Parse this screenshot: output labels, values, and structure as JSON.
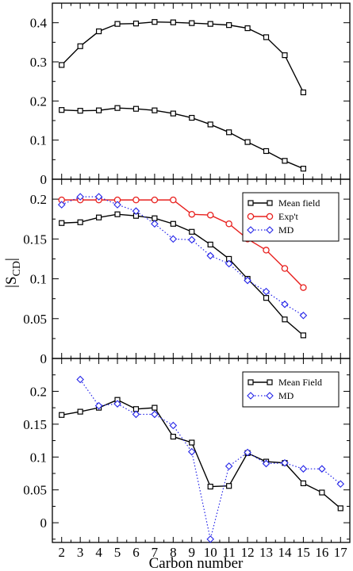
{
  "xlabel": "Carbon number",
  "ylabel_main": "|S",
  "ylabel_sub": "CD",
  "ylabel_close": "|",
  "x_ticks": [
    2,
    3,
    4,
    5,
    6,
    7,
    8,
    9,
    10,
    11,
    12,
    13,
    14,
    15,
    16,
    17
  ],
  "chart_data": [
    {
      "type": "line",
      "panel": "top",
      "xlim": [
        1.5,
        17.5
      ],
      "ylim": [
        0,
        0.45
      ],
      "yticks": [
        0,
        0.1,
        0.2,
        0.3,
        0.4
      ],
      "ytick_labels": [
        "0",
        "0.1",
        "0.2",
        "0.3",
        "0.4"
      ],
      "legend": null,
      "series": [
        {
          "color": "#000000",
          "marker": "square",
          "dash": "solid",
          "x": [
            2,
            3,
            4,
            5,
            6,
            7,
            8,
            9,
            10,
            11,
            12,
            13,
            14,
            15
          ],
          "values": [
            0.292,
            0.34,
            0.378,
            0.397,
            0.398,
            0.402,
            0.401,
            0.399,
            0.397,
            0.394,
            0.386,
            0.363,
            0.317,
            0.222
          ]
        },
        {
          "color": "#000000",
          "marker": "square",
          "dash": "solid",
          "x": [
            2,
            3,
            4,
            5,
            6,
            7,
            8,
            9,
            10,
            11,
            12,
            13,
            14,
            15
          ],
          "values": [
            0.177,
            0.175,
            0.176,
            0.182,
            0.18,
            0.176,
            0.168,
            0.157,
            0.14,
            0.12,
            0.095,
            0.072,
            0.047,
            0.027
          ]
        }
      ]
    },
    {
      "type": "line",
      "panel": "middle",
      "xlim": [
        1.5,
        17.5
      ],
      "ylim": [
        0,
        0.225
      ],
      "yticks": [
        0,
        0.05,
        0.1,
        0.15,
        0.2
      ],
      "ytick_labels": [
        "0",
        "0.05",
        "0.1",
        "0.15",
        "0.2"
      ],
      "legend": "top-right",
      "series": [
        {
          "name": "Mean field",
          "color": "#000000",
          "marker": "square",
          "dash": "solid",
          "x": [
            2,
            3,
            4,
            5,
            6,
            7,
            8,
            9,
            10,
            11,
            12,
            13,
            14,
            15
          ],
          "values": [
            0.17,
            0.171,
            0.177,
            0.181,
            0.179,
            0.176,
            0.169,
            0.159,
            0.143,
            0.125,
            0.1,
            0.076,
            0.049,
            0.029
          ]
        },
        {
          "name": "Exp't",
          "color": "#e8201e",
          "marker": "circle",
          "dash": "solid",
          "x": [
            2,
            3,
            4,
            5,
            6,
            7,
            8,
            9,
            10,
            11,
            12,
            13,
            14,
            15
          ],
          "values": [
            0.199,
            0.199,
            0.199,
            0.199,
            0.199,
            0.199,
            0.199,
            0.181,
            0.18,
            0.169,
            0.15,
            0.136,
            0.113,
            0.089
          ]
        },
        {
          "name": "MD",
          "color": "#2424e8",
          "marker": "diamond",
          "dash": "dotted",
          "x": [
            2,
            3,
            4,
            5,
            6,
            7,
            8,
            9,
            10,
            11,
            12,
            13,
            14,
            15
          ],
          "values": [
            0.193,
            0.203,
            0.203,
            0.193,
            0.185,
            0.169,
            0.15,
            0.149,
            0.129,
            0.119,
            0.098,
            0.084,
            0.068,
            0.054
          ]
        }
      ]
    },
    {
      "type": "line",
      "panel": "bottom",
      "xlim": [
        1.5,
        17.5
      ],
      "ylim": [
        -0.03,
        0.25
      ],
      "yticks": [
        0,
        0.05,
        0.1,
        0.15,
        0.2
      ],
      "ytick_labels": [
        "0",
        "0.05",
        "0.1",
        "0.15",
        "0.2"
      ],
      "legend": "top-right",
      "series": [
        {
          "name": "Mean Field",
          "color": "#000000",
          "marker": "square",
          "dash": "solid",
          "x": [
            2,
            3,
            4,
            5,
            6,
            7,
            8,
            9,
            10,
            11,
            12,
            13,
            14,
            15,
            16,
            17
          ],
          "values": [
            0.164,
            0.169,
            0.175,
            0.187,
            0.173,
            0.175,
            0.131,
            0.122,
            0.055,
            0.056,
            0.106,
            0.093,
            0.091,
            0.06,
            0.046,
            0.022
          ]
        },
        {
          "name": "MD",
          "color": "#2424e8",
          "marker": "diamond",
          "dash": "dotted",
          "x": [
            3,
            4,
            5,
            6,
            7,
            8,
            9,
            10,
            11,
            12,
            13,
            14,
            15,
            16,
            17
          ],
          "values": [
            0.218,
            0.178,
            0.181,
            0.165,
            0.165,
            0.148,
            0.108,
            -0.025,
            0.086,
            0.107,
            0.09,
            0.091,
            0.082,
            0.082,
            0.059
          ]
        }
      ]
    }
  ]
}
